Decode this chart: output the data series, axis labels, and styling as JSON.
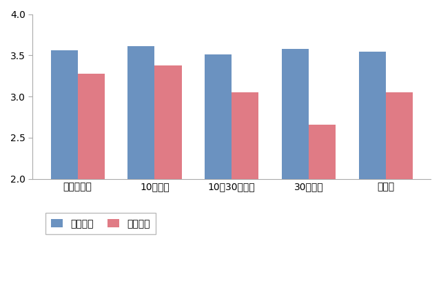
{
  "categories": [
    "同居子あり",
    "10分以内",
    "10～30分以内",
    "30分以上",
    "子なし"
  ],
  "no_experience": [
    3.56,
    3.61,
    3.51,
    3.58,
    3.54
  ],
  "experience": [
    3.28,
    3.38,
    3.05,
    2.66,
    3.05
  ],
  "bar_color_no_exp": "#6b92c0",
  "bar_color_exp": "#e07b85",
  "ylim": [
    2.0,
    4.0
  ],
  "yticks": [
    2.0,
    2.5,
    3.0,
    3.5,
    4.0
  ],
  "legend_labels": [
    "経験なし",
    "経験あり"
  ],
  "background_color": "#ffffff",
  "bar_width": 0.35,
  "tick_color": "#555555"
}
